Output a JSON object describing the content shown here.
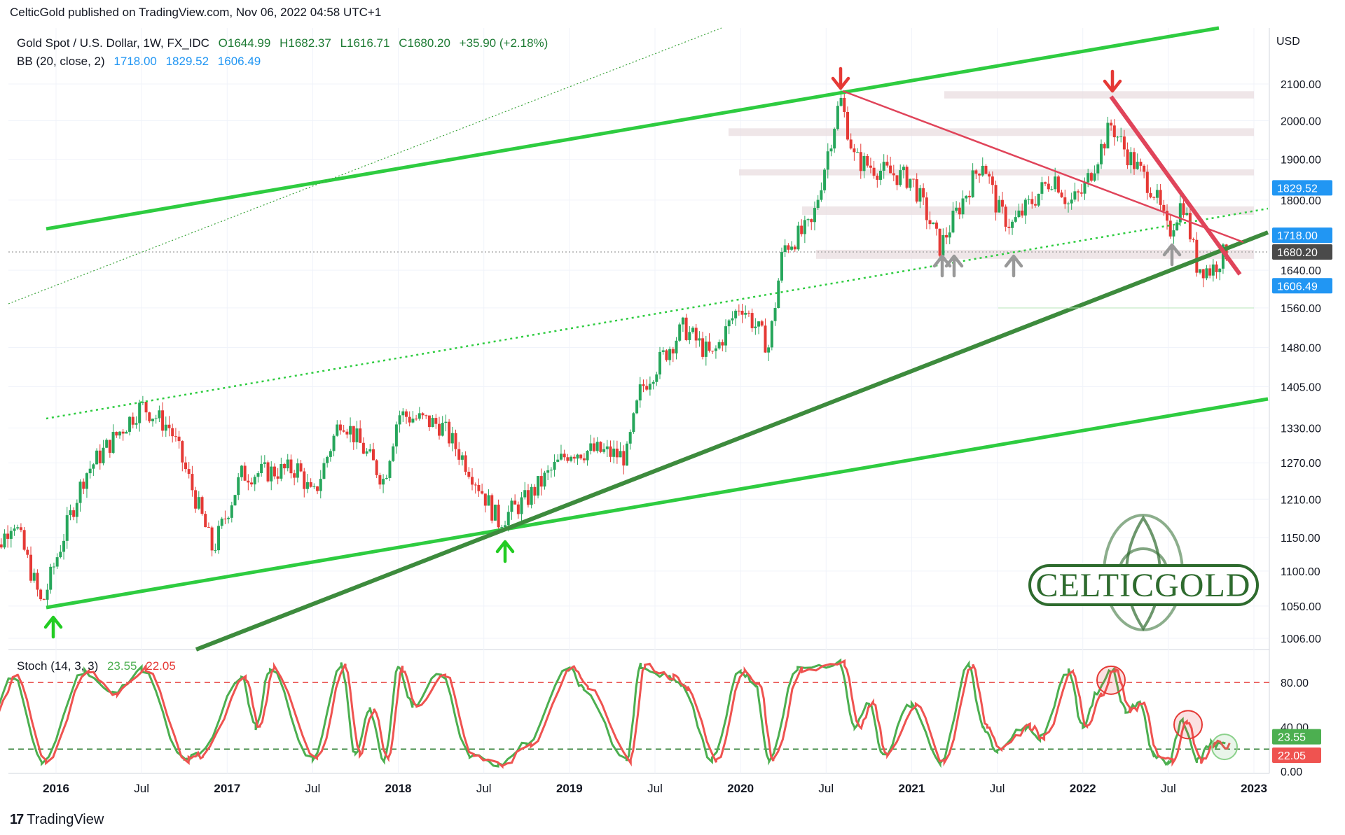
{
  "header": {
    "text": "CelticGold published on TradingView.com, Nov 06, 2022 04:58 UTC+1"
  },
  "legend_price": {
    "symbol": "Gold Spot / U.S. Dollar, 1W, FX_IDC",
    "open": "O1644.99",
    "high": "H1682.37",
    "low": "L1616.71",
    "close": "C1680.20",
    "change": "+35.90 (+2.18%)"
  },
  "legend_bb": {
    "label": "BB (20, close, 2)",
    "basis": "1718.00",
    "upper": "1829.52",
    "lower": "1606.49"
  },
  "legend_stoch": {
    "label": "Stoch (14, 3, 3)",
    "k": "23.55",
    "d": "22.05"
  },
  "logo": {
    "text": "CELTICGOLD"
  },
  "footer": {
    "brand": "TradingView"
  },
  "colors": {
    "up_candle": "#26a65b",
    "down_candle": "#e53935",
    "trend_bright": "#2ecc40",
    "trend_dark": "#3d8b3d",
    "resistance": "#e0445a",
    "stoch_k": "#4caf50",
    "stoch_d": "#ef5350",
    "bb_tag": "#2196f3",
    "last_price_tag": "#4a4a4a",
    "zone": "#eadde0"
  },
  "chart_data": [
    {
      "type": "candlestick",
      "title": "Gold Spot / U.S. Dollar, 1W, FX_IDC",
      "ylabel": "USD",
      "y_scale": "log",
      "ylim": [
        980,
        2230
      ],
      "x_range": [
        "2015-08",
        "2023-02"
      ],
      "x_ticks": [
        "2016",
        "Jul",
        "2017",
        "Jul",
        "2018",
        "Jul",
        "2019",
        "Jul",
        "2020",
        "Jul",
        "2021",
        "Jul",
        "2022",
        "Jul",
        "2023"
      ],
      "x_tick_dates": [
        "2016-01",
        "2016-07",
        "2017-01",
        "2017-07",
        "2018-01",
        "2018-07",
        "2019-01",
        "2019-07",
        "2020-01",
        "2020-07",
        "2021-01",
        "2021-07",
        "2022-01",
        "2022-07",
        "2023-01"
      ],
      "y_ticks": [
        "2100.00",
        "2000.00",
        "1900.00",
        "1800.00",
        "1640.00",
        "1560.00",
        "1480.00",
        "1405.00",
        "1330.00",
        "1270.00",
        "1210.00",
        "1150.00",
        "1100.00",
        "1050.00",
        "1006.00"
      ],
      "price_tags": [
        {
          "label": "1829.52",
          "value": 1829.52,
          "color": "#2196f3"
        },
        {
          "label": "1718.00",
          "value": 1718.0,
          "color": "#2196f3"
        },
        {
          "label": "1680.20",
          "value": 1680.2,
          "color": "#4a4a4a"
        },
        {
          "label": "1606.49",
          "value": 1606.49,
          "color": "#2196f3"
        }
      ],
      "grid": true,
      "anchors": [
        [
          "2015-08",
          1095
        ],
        [
          "2015-10",
          1180
        ],
        [
          "2015-12",
          1050
        ],
        [
          "2016-03",
          1250
        ],
        [
          "2016-07",
          1370
        ],
        [
          "2016-09",
          1330
        ],
        [
          "2016-12",
          1130
        ],
        [
          "2017-02",
          1250
        ],
        [
          "2017-06",
          1260
        ],
        [
          "2017-07",
          1210
        ],
        [
          "2017-09",
          1350
        ],
        [
          "2017-12",
          1240
        ],
        [
          "2018-01",
          1355
        ],
        [
          "2018-04",
          1335
        ],
        [
          "2018-06",
          1260
        ],
        [
          "2018-08",
          1175
        ],
        [
          "2018-10",
          1210
        ],
        [
          "2019-01",
          1290
        ],
        [
          "2019-03",
          1290
        ],
        [
          "2019-05",
          1280
        ],
        [
          "2019-06",
          1400
        ],
        [
          "2019-09",
          1520
        ],
        [
          "2019-11",
          1460
        ],
        [
          "2020-01",
          1570
        ],
        [
          "2020-03",
          1480
        ],
        [
          "2020-04",
          1690
        ],
        [
          "2020-06",
          1740
        ],
        [
          "2020-08",
          2060
        ],
        [
          "2020-09",
          1900
        ],
        [
          "2020-11",
          1870
        ],
        [
          "2021-01",
          1850
        ],
        [
          "2021-03",
          1690
        ],
        [
          "2021-06",
          1900
        ],
        [
          "2021-07",
          1780
        ],
        [
          "2021-08",
          1740
        ],
        [
          "2021-11",
          1860
        ],
        [
          "2021-12",
          1790
        ],
        [
          "2022-01",
          1820
        ],
        [
          "2022-03",
          1990
        ],
        [
          "2022-04",
          1920
        ],
        [
          "2022-06",
          1820
        ],
        [
          "2022-07",
          1720
        ],
        [
          "2022-08",
          1800
        ],
        [
          "2022-09",
          1650
        ],
        [
          "2022-10",
          1640
        ],
        [
          "2022-11",
          1680
        ]
      ]
    },
    {
      "type": "line",
      "title": "Stoch (14, 3, 3)",
      "ylim": [
        -5,
        105
      ],
      "y_ticks": [
        "80.00",
        "40.00",
        "0.00"
      ],
      "levels": [
        80,
        20
      ],
      "series": [
        {
          "name": "%K",
          "last": 23.55,
          "color": "#4caf50"
        },
        {
          "name": "%D",
          "last": 22.05,
          "color": "#ef5350"
        }
      ],
      "peaks": [
        [
          "2015-08",
          40
        ],
        [
          "2015-10",
          85
        ],
        [
          "2015-12",
          8
        ],
        [
          "2016-03",
          90
        ],
        [
          "2016-05",
          70
        ],
        [
          "2016-07",
          92
        ],
        [
          "2016-10",
          10
        ],
        [
          "2016-11",
          15
        ],
        [
          "2017-02",
          85
        ],
        [
          "2017-03",
          40
        ],
        [
          "2017-04",
          92
        ],
        [
          "2017-07",
          10
        ],
        [
          "2017-09",
          95
        ],
        [
          "2017-10",
          15
        ],
        [
          "2017-11",
          55
        ],
        [
          "2017-12",
          10
        ],
        [
          "2018-01",
          92
        ],
        [
          "2018-02",
          60
        ],
        [
          "2018-04",
          88
        ],
        [
          "2018-06",
          15
        ],
        [
          "2018-08",
          5
        ],
        [
          "2018-10",
          25
        ],
        [
          "2019-01",
          93
        ],
        [
          "2019-02",
          75
        ],
        [
          "2019-05",
          10
        ],
        [
          "2019-06",
          95
        ],
        [
          "2019-08",
          85
        ],
        [
          "2019-09",
          75
        ],
        [
          "2019-11",
          10
        ],
        [
          "2020-01",
          90
        ],
        [
          "2020-02",
          80
        ],
        [
          "2020-03",
          10
        ],
        [
          "2020-05",
          92
        ],
        [
          "2020-08",
          97
        ],
        [
          "2020-09",
          40
        ],
        [
          "2020-10",
          60
        ],
        [
          "2020-11",
          15
        ],
        [
          "2021-01",
          60
        ],
        [
          "2021-03",
          8
        ],
        [
          "2021-05",
          95
        ],
        [
          "2021-06",
          40
        ],
        [
          "2021-07",
          20
        ],
        [
          "2021-09",
          40
        ],
        [
          "2021-10",
          30
        ],
        [
          "2021-12",
          90
        ],
        [
          "2022-01",
          40
        ],
        [
          "2022-02",
          70
        ],
        [
          "2022-03",
          92
        ],
        [
          "2022-04",
          55
        ],
        [
          "2022-05",
          60
        ],
        [
          "2022-06",
          15
        ],
        [
          "2022-07",
          8
        ],
        [
          "2022-08",
          45
        ],
        [
          "2022-09",
          10
        ],
        [
          "2022-10",
          25
        ],
        [
          "2022-11",
          23
        ]
      ]
    }
  ]
}
